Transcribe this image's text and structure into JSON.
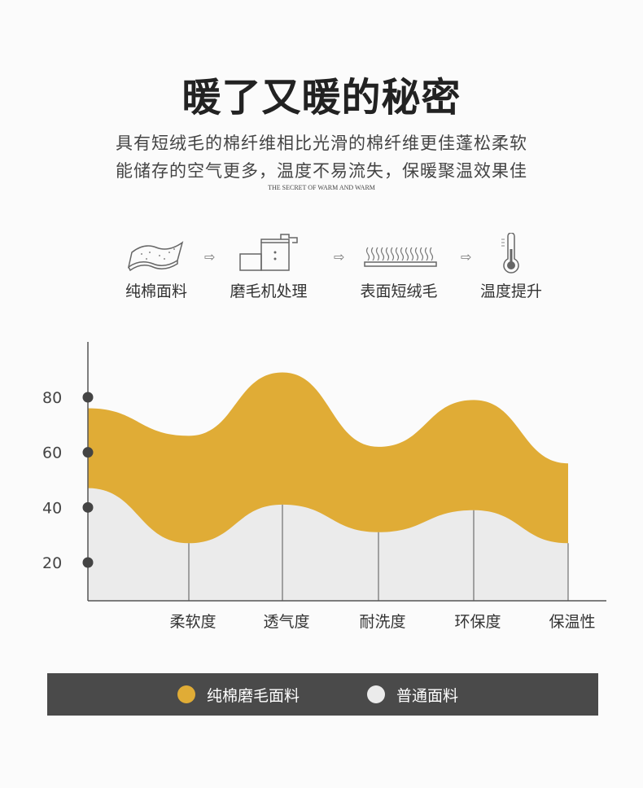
{
  "header": {
    "title": "暖了又暖的秘密",
    "subtitle_line1": "具有短绒毛的棉纤维相比光滑的棉纤维更佳蓬松柔软",
    "subtitle_line2": "能储存的空气更多，温度不易流失，保暖聚温效果佳",
    "english": "THE SECRET OF WARM AND WARM"
  },
  "process": {
    "steps": [
      {
        "label": "纯棉面料",
        "icon": "fabric-icon"
      },
      {
        "label": "磨毛机处理",
        "icon": "machine-icon"
      },
      {
        "label": "表面短绒毛",
        "icon": "fleece-icon"
      },
      {
        "label": "温度提升",
        "icon": "thermometer-icon"
      }
    ],
    "arrow_icon": "arrow-right-icon"
  },
  "chart_data": {
    "type": "area",
    "categories": [
      "",
      "柔软度",
      "透气度",
      "耐洗度",
      "环保度",
      "保温性"
    ],
    "series": [
      {
        "name": "纯棉磨毛面料",
        "values": [
          76,
          66,
          89,
          62,
          79,
          56
        ],
        "color": "#e0ac36"
      },
      {
        "name": "普通面料",
        "values": [
          47,
          27,
          41,
          31,
          39,
          27
        ],
        "color": "#ebebeb"
      }
    ],
    "yticks": [
      20,
      40,
      60,
      80
    ],
    "ylim": [
      6,
      95
    ],
    "grid": false,
    "legend": "bottom"
  }
}
